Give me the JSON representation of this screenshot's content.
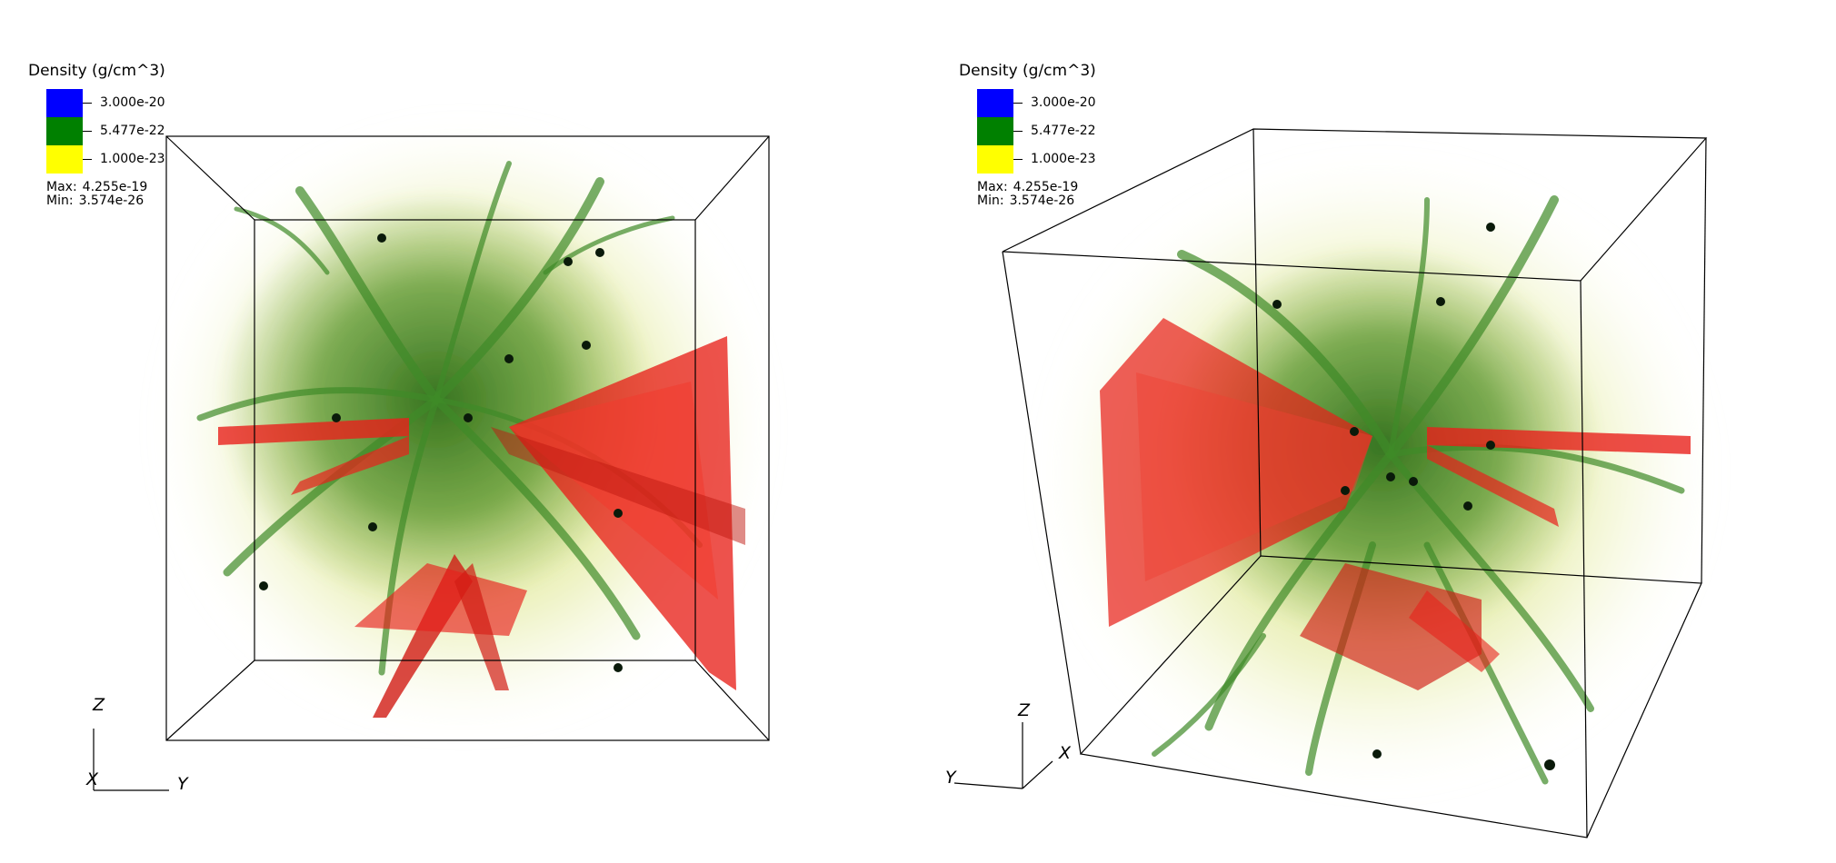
{
  "legend": {
    "title": "Density (g/cm^3)",
    "entries": [
      {
        "label": "3.000e-20",
        "color": "#0000ff"
      },
      {
        "label": "5.477e-22",
        "color": "#008000"
      },
      {
        "label": "1.000e-23",
        "color": "#ffff00"
      }
    ],
    "max_label": "Max:",
    "max_value": "4.255e-19",
    "min_label": "Min:",
    "min_value": "3.574e-26"
  },
  "axes": {
    "x": "X",
    "y": "Y",
    "z": "Z"
  },
  "colors": {
    "jet_red": "#e8211b",
    "filament_green": "#3d8a22",
    "gas_yellow": "#e6ec9a",
    "sink_black": "#0a1a0a"
  }
}
